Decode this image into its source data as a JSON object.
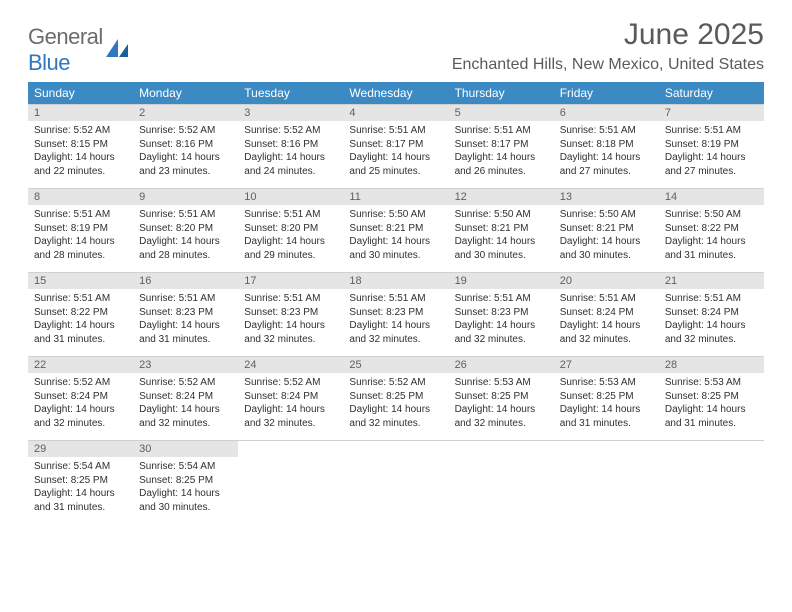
{
  "logo": {
    "word1": "General",
    "word2": "Blue"
  },
  "title": "June 2025",
  "location": "Enchanted Hills, New Mexico, United States",
  "weekdays": [
    "Sunday",
    "Monday",
    "Tuesday",
    "Wednesday",
    "Thursday",
    "Friday",
    "Saturday"
  ],
  "colors": {
    "header_bar": "#3b8ac4",
    "day_num_bg": "#e5e5e5",
    "rule": "#2f6fa8",
    "logo_gray": "#6c6c6c",
    "logo_blue": "#2f78bd",
    "text_gray": "#5a5a5a",
    "body_text": "#303030"
  },
  "weeks": [
    [
      {
        "n": "1",
        "sr": "Sunrise: 5:52 AM",
        "ss": "Sunset: 8:15 PM",
        "d1": "Daylight: 14 hours",
        "d2": "and 22 minutes."
      },
      {
        "n": "2",
        "sr": "Sunrise: 5:52 AM",
        "ss": "Sunset: 8:16 PM",
        "d1": "Daylight: 14 hours",
        "d2": "and 23 minutes."
      },
      {
        "n": "3",
        "sr": "Sunrise: 5:52 AM",
        "ss": "Sunset: 8:16 PM",
        "d1": "Daylight: 14 hours",
        "d2": "and 24 minutes."
      },
      {
        "n": "4",
        "sr": "Sunrise: 5:51 AM",
        "ss": "Sunset: 8:17 PM",
        "d1": "Daylight: 14 hours",
        "d2": "and 25 minutes."
      },
      {
        "n": "5",
        "sr": "Sunrise: 5:51 AM",
        "ss": "Sunset: 8:17 PM",
        "d1": "Daylight: 14 hours",
        "d2": "and 26 minutes."
      },
      {
        "n": "6",
        "sr": "Sunrise: 5:51 AM",
        "ss": "Sunset: 8:18 PM",
        "d1": "Daylight: 14 hours",
        "d2": "and 27 minutes."
      },
      {
        "n": "7",
        "sr": "Sunrise: 5:51 AM",
        "ss": "Sunset: 8:19 PM",
        "d1": "Daylight: 14 hours",
        "d2": "and 27 minutes."
      }
    ],
    [
      {
        "n": "8",
        "sr": "Sunrise: 5:51 AM",
        "ss": "Sunset: 8:19 PM",
        "d1": "Daylight: 14 hours",
        "d2": "and 28 minutes."
      },
      {
        "n": "9",
        "sr": "Sunrise: 5:51 AM",
        "ss": "Sunset: 8:20 PM",
        "d1": "Daylight: 14 hours",
        "d2": "and 28 minutes."
      },
      {
        "n": "10",
        "sr": "Sunrise: 5:51 AM",
        "ss": "Sunset: 8:20 PM",
        "d1": "Daylight: 14 hours",
        "d2": "and 29 minutes."
      },
      {
        "n": "11",
        "sr": "Sunrise: 5:50 AM",
        "ss": "Sunset: 8:21 PM",
        "d1": "Daylight: 14 hours",
        "d2": "and 30 minutes."
      },
      {
        "n": "12",
        "sr": "Sunrise: 5:50 AM",
        "ss": "Sunset: 8:21 PM",
        "d1": "Daylight: 14 hours",
        "d2": "and 30 minutes."
      },
      {
        "n": "13",
        "sr": "Sunrise: 5:50 AM",
        "ss": "Sunset: 8:21 PM",
        "d1": "Daylight: 14 hours",
        "d2": "and 30 minutes."
      },
      {
        "n": "14",
        "sr": "Sunrise: 5:50 AM",
        "ss": "Sunset: 8:22 PM",
        "d1": "Daylight: 14 hours",
        "d2": "and 31 minutes."
      }
    ],
    [
      {
        "n": "15",
        "sr": "Sunrise: 5:51 AM",
        "ss": "Sunset: 8:22 PM",
        "d1": "Daylight: 14 hours",
        "d2": "and 31 minutes."
      },
      {
        "n": "16",
        "sr": "Sunrise: 5:51 AM",
        "ss": "Sunset: 8:23 PM",
        "d1": "Daylight: 14 hours",
        "d2": "and 31 minutes."
      },
      {
        "n": "17",
        "sr": "Sunrise: 5:51 AM",
        "ss": "Sunset: 8:23 PM",
        "d1": "Daylight: 14 hours",
        "d2": "and 32 minutes."
      },
      {
        "n": "18",
        "sr": "Sunrise: 5:51 AM",
        "ss": "Sunset: 8:23 PM",
        "d1": "Daylight: 14 hours",
        "d2": "and 32 minutes."
      },
      {
        "n": "19",
        "sr": "Sunrise: 5:51 AM",
        "ss": "Sunset: 8:23 PM",
        "d1": "Daylight: 14 hours",
        "d2": "and 32 minutes."
      },
      {
        "n": "20",
        "sr": "Sunrise: 5:51 AM",
        "ss": "Sunset: 8:24 PM",
        "d1": "Daylight: 14 hours",
        "d2": "and 32 minutes."
      },
      {
        "n": "21",
        "sr": "Sunrise: 5:51 AM",
        "ss": "Sunset: 8:24 PM",
        "d1": "Daylight: 14 hours",
        "d2": "and 32 minutes."
      }
    ],
    [
      {
        "n": "22",
        "sr": "Sunrise: 5:52 AM",
        "ss": "Sunset: 8:24 PM",
        "d1": "Daylight: 14 hours",
        "d2": "and 32 minutes."
      },
      {
        "n": "23",
        "sr": "Sunrise: 5:52 AM",
        "ss": "Sunset: 8:24 PM",
        "d1": "Daylight: 14 hours",
        "d2": "and 32 minutes."
      },
      {
        "n": "24",
        "sr": "Sunrise: 5:52 AM",
        "ss": "Sunset: 8:24 PM",
        "d1": "Daylight: 14 hours",
        "d2": "and 32 minutes."
      },
      {
        "n": "25",
        "sr": "Sunrise: 5:52 AM",
        "ss": "Sunset: 8:25 PM",
        "d1": "Daylight: 14 hours",
        "d2": "and 32 minutes."
      },
      {
        "n": "26",
        "sr": "Sunrise: 5:53 AM",
        "ss": "Sunset: 8:25 PM",
        "d1": "Daylight: 14 hours",
        "d2": "and 32 minutes."
      },
      {
        "n": "27",
        "sr": "Sunrise: 5:53 AM",
        "ss": "Sunset: 8:25 PM",
        "d1": "Daylight: 14 hours",
        "d2": "and 31 minutes."
      },
      {
        "n": "28",
        "sr": "Sunrise: 5:53 AM",
        "ss": "Sunset: 8:25 PM",
        "d1": "Daylight: 14 hours",
        "d2": "and 31 minutes."
      }
    ],
    [
      {
        "n": "29",
        "sr": "Sunrise: 5:54 AM",
        "ss": "Sunset: 8:25 PM",
        "d1": "Daylight: 14 hours",
        "d2": "and 31 minutes."
      },
      {
        "n": "30",
        "sr": "Sunrise: 5:54 AM",
        "ss": "Sunset: 8:25 PM",
        "d1": "Daylight: 14 hours",
        "d2": "and 30 minutes."
      },
      null,
      null,
      null,
      null,
      null
    ]
  ]
}
